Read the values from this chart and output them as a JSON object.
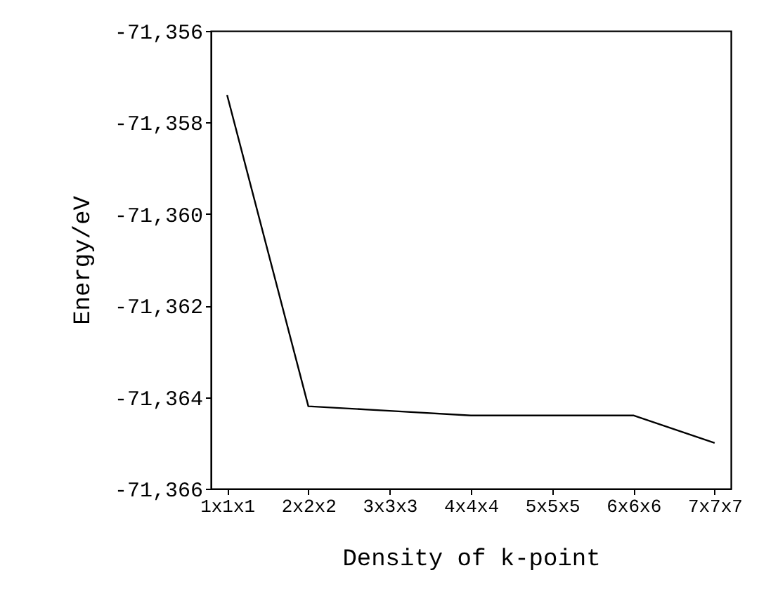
{
  "chart_data": {
    "type": "line",
    "xlabel": "Density of k-point",
    "ylabel": "Energy/eV",
    "categories": [
      "1x1x1",
      "2x2x2",
      "3x3x3",
      "4x4x4",
      "5x5x5",
      "6x6x6",
      "7x7x7"
    ],
    "series": [
      {
        "color": "#000000",
        "values": [
          -71357.4,
          -71364.2,
          -71364.3,
          -71364.4,
          -71364.4,
          -71364.4,
          -71365.0
        ]
      }
    ],
    "ylim": [
      -71366,
      -71356
    ],
    "yticks": [
      {
        "value": -71366,
        "label": "-71,366"
      },
      {
        "value": -71364,
        "label": "-71,364"
      },
      {
        "value": -71362,
        "label": "-71,362"
      },
      {
        "value": -71360,
        "label": "-71,360"
      },
      {
        "value": -71358,
        "label": "-71,358"
      },
      {
        "value": -71356,
        "label": "-71,356"
      }
    ],
    "grid": false,
    "legend": false,
    "marker": "none",
    "line_style": "solid"
  }
}
